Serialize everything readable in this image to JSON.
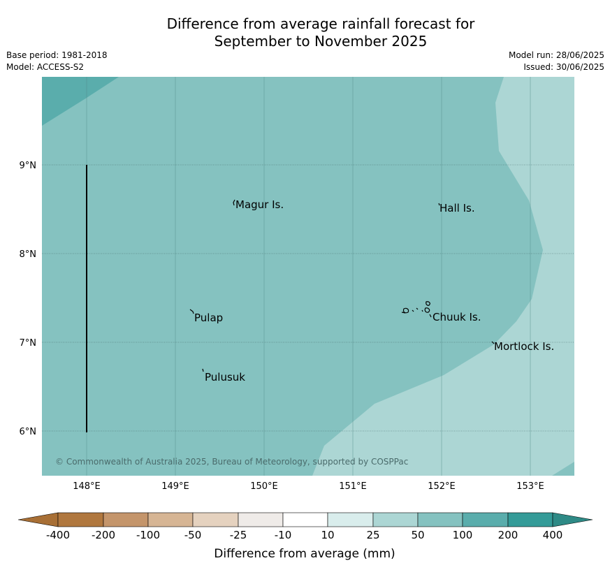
{
  "title": {
    "line1": "Difference from average rainfall forecast for",
    "line2": "September to November 2025"
  },
  "meta": {
    "base_period": "Base period: 1981-2018",
    "model": "Model: ACCESS-S2",
    "model_run": "Model run: 28/06/2025",
    "issued": "Issued: 30/06/2025"
  },
  "axes": {
    "lon_ticks": [
      "148°E",
      "149°E",
      "150°E",
      "151°E",
      "152°E",
      "153°E"
    ],
    "lat_ticks": [
      "9°N",
      "8°N",
      "7°N",
      "6°N"
    ]
  },
  "places": {
    "magur": "Magur Is.",
    "hall": "Hall Is.",
    "pulap": "Pulap",
    "chuuk": "Chuuk Is.",
    "mortlock": "Mortlock Is.",
    "pulusuk": "Pulusuk"
  },
  "copyright": "© Commonwealth of Australia 2025, Bureau of Meteorology, supported by COSPPac",
  "colorbar": {
    "title": "Difference from average (mm)",
    "labels": [
      "-400",
      "-200",
      "-100",
      "-50",
      "-25",
      "-10",
      "10",
      "25",
      "50",
      "100",
      "200",
      "400"
    ],
    "colors": [
      "#a86f35",
      "#b0773e",
      "#c4956b",
      "#d6b594",
      "#e5d2bf",
      "#efebe8",
      "#ffffff",
      "#d9edec",
      "#acd6d4",
      "#85c2c0",
      "#5aadac",
      "#349b98",
      "#2e8a86"
    ]
  },
  "colors": {
    "zone_100": "#5aadac",
    "zone_50": "#85c2c0",
    "zone_25": "#acd6d4"
  }
}
